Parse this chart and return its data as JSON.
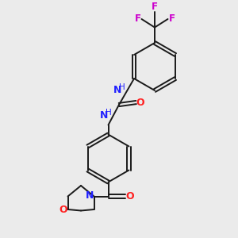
{
  "background_color": "#ebebeb",
  "bond_color": "#1a1a1a",
  "N_color": "#2020ff",
  "O_color": "#ff2020",
  "F_color": "#cc00cc",
  "figsize": [
    3.0,
    3.0
  ],
  "dpi": 100,
  "xlim": [
    0,
    10
  ],
  "ylim": [
    0,
    10
  ]
}
